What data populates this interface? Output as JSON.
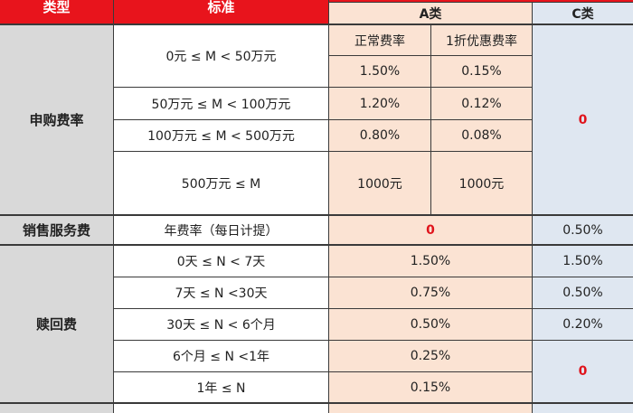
{
  "header": {
    "type": "类型",
    "standard": "标准",
    "class_a": "A类",
    "class_c": "C类"
  },
  "subscription": {
    "label": "申购费率",
    "a_subheaders": [
      "正常费率",
      "1折优惠费率"
    ],
    "rows": [
      {
        "range": "0元 ≤ M < 50万元",
        "normal": "1.50%",
        "discount": "0.15%"
      },
      {
        "range": "50万元 ≤ M < 100万元",
        "normal": "1.20%",
        "discount": "0.12%"
      },
      {
        "range": "100万元 ≤ M < 500万元",
        "normal": "0.80%",
        "discount": "0.08%"
      },
      {
        "range": "500万元 ≤ M",
        "normal": "1000元",
        "discount": "1000元"
      }
    ],
    "c_value": "0"
  },
  "sales_service": {
    "label": "销售服务费",
    "standard": "年费率（每日计提）",
    "a_value": "0",
    "c_value": "0.50%"
  },
  "redemption": {
    "label": "赎回费",
    "rows": [
      {
        "range": "0天 ≤ N < 7天",
        "a": "1.50%",
        "c": "1.50%"
      },
      {
        "range": "7天 ≤ N <30天",
        "a": "0.75%",
        "c": "0.50%"
      },
      {
        "range": "30天 ≤ N < 6个月",
        "a": "0.50%",
        "c": "0.20%"
      },
      {
        "range": "6个月 ≤ N <1年",
        "a": "0.25%"
      },
      {
        "range": "1年 ≤ N",
        "a": "0.15%"
      }
    ],
    "c_value_over_6m": "0"
  },
  "colors": {
    "header": "#e8141c",
    "label": "#d9d9d9",
    "class_a": "#fbe3d3",
    "class_c": "#dfe7f1",
    "zero": "#e0141c"
  }
}
